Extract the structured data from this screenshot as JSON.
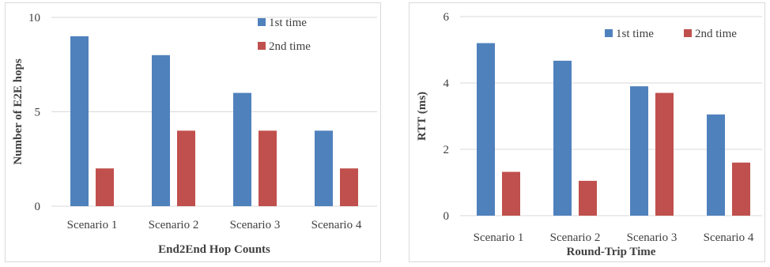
{
  "chart_data": [
    {
      "type": "bar",
      "title": "End2End Hop Counts",
      "ylabel": "Number of E2E hops",
      "xlabel": "",
      "categories": [
        "Scenario 1",
        "Scenario 2",
        "Scenario 3",
        "Scenario 4"
      ],
      "series": [
        {
          "name": "1st time",
          "values": [
            9,
            8,
            6,
            4
          ],
          "color": "#4f81bd"
        },
        {
          "name": "2nd time",
          "values": [
            2,
            4,
            4,
            2
          ],
          "color": "#c0504d"
        }
      ],
      "ylim": [
        0,
        10
      ],
      "yticks": [
        "0",
        "5",
        "10"
      ],
      "grid": true,
      "legend_position": "top-right"
    },
    {
      "type": "bar",
      "title": "Round-Trip Time",
      "ylabel": "RTT (ms)",
      "xlabel": "",
      "categories": [
        "Scenario 1",
        "Scenario 2",
        "Scenario 3",
        "Scenario 4"
      ],
      "series": [
        {
          "name": "1st time",
          "values": [
            5.2,
            4.67,
            3.9,
            3.05
          ],
          "color": "#4f81bd"
        },
        {
          "name": "2nd time",
          "values": [
            1.32,
            1.05,
            3.7,
            1.6
          ],
          "color": "#c0504d"
        }
      ],
      "ylim": [
        0,
        6
      ],
      "yticks": [
        "0",
        "2",
        "4",
        "6"
      ],
      "grid": true,
      "legend_position": "top-right"
    }
  ]
}
